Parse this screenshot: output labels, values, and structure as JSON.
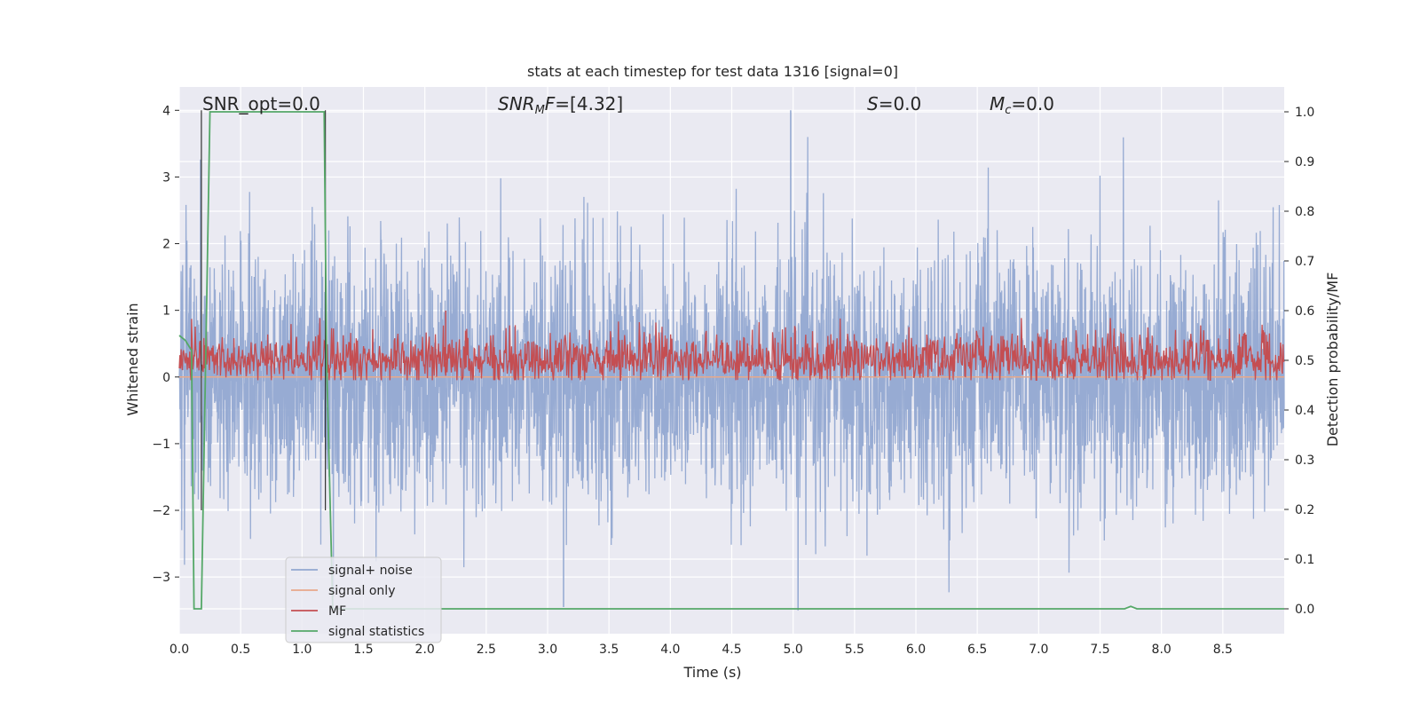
{
  "chart_data": {
    "type": "line",
    "title": "stats at each timestep for test data 1316 [signal=0]",
    "xlabel": "Time (s)",
    "ylabel_left": "Whitened strain",
    "ylabel_right": "Detection probability/MF",
    "xlim": [
      0,
      9
    ],
    "ylim_left": [
      -3.85,
      4.35
    ],
    "ylim_right": [
      -0.05,
      1.05
    ],
    "x_ticks": [
      0.0,
      0.5,
      1.0,
      1.5,
      2.0,
      2.5,
      3.0,
      3.5,
      4.0,
      4.5,
      5.0,
      5.5,
      6.0,
      6.5,
      7.0,
      7.5,
      8.0,
      8.5
    ],
    "x_tick_labels": [
      "0.0",
      "0.5",
      "1.0",
      "1.5",
      "2.0",
      "2.5",
      "3.0",
      "3.5",
      "4.0",
      "4.5",
      "5.0",
      "5.5",
      "6.0",
      "6.5",
      "7.0",
      "7.5",
      "8.0",
      "8.5"
    ],
    "y_left_ticks": [
      -3,
      -2,
      -1,
      0,
      1,
      2,
      3,
      4
    ],
    "y_left_tick_labels": [
      "−3",
      "−2",
      "−1",
      "0",
      "1",
      "2",
      "3",
      "4"
    ],
    "y_right_ticks": [
      0.0,
      0.1,
      0.2,
      0.3,
      0.4,
      0.5,
      0.6,
      0.7,
      0.8,
      0.9,
      1.0
    ],
    "y_right_tick_labels": [
      "0.0",
      "0.1",
      "0.2",
      "0.3",
      "0.4",
      "0.5",
      "0.6",
      "0.7",
      "0.8",
      "0.9",
      "1.0"
    ],
    "grid": true,
    "legend_position": "lower-left",
    "annotations": [
      {
        "id": "snr-opt",
        "text": "SNR_opt=0.0",
        "x": 0.2
      },
      {
        "id": "snr-mf",
        "text": "SNR_MF=[4.32]",
        "x": 2.6
      },
      {
        "id": "spin",
        "text": "S=0.0",
        "x": 5.6
      },
      {
        "id": "chirp-mass",
        "text": "M_c=0.0",
        "x": 6.6
      }
    ],
    "series": [
      {
        "name": "signal+ noise",
        "axis": "left",
        "color": "#92a8d1",
        "kind": "noise",
        "sigma": 0.95,
        "peak_extremes": [
          {
            "x": 4.98,
            "y": 4.0
          },
          {
            "x": 5.04,
            "y": -3.5
          },
          {
            "x": 3.13,
            "y": -3.45
          }
        ]
      },
      {
        "name": "signal only",
        "axis": "left",
        "color": "#e8a88a",
        "x": [
          0,
          9
        ],
        "y": [
          0,
          0
        ]
      },
      {
        "name": "MF",
        "axis": "right",
        "color": "#c44e52",
        "kind": "noise",
        "center": 0.5,
        "sigma": 0.03,
        "range": [
          0.46,
          0.6
        ],
        "peak_extremes": [
          {
            "x": 2.17,
            "y": 0.6
          }
        ]
      },
      {
        "name": "signal statistics",
        "axis": "right",
        "color": "#55a868",
        "x": [
          0.0,
          0.05,
          0.1,
          0.12,
          0.18,
          0.25,
          0.3,
          1.0,
          1.18,
          1.2,
          1.25,
          1.5,
          7.7,
          7.75,
          7.8,
          9.0
        ],
        "y": [
          0.55,
          0.54,
          0.52,
          0.0,
          0.0,
          1.0,
          1.0,
          1.0,
          1.0,
          0.5,
          0.0,
          0.0,
          0.0,
          0.005,
          0.0,
          0.0
        ]
      }
    ],
    "markers": [
      {
        "name": "black-vline-start",
        "x": 0.18,
        "color": "#333333"
      },
      {
        "name": "black-vline-end",
        "x": 1.19,
        "color": "#333333"
      }
    ]
  }
}
